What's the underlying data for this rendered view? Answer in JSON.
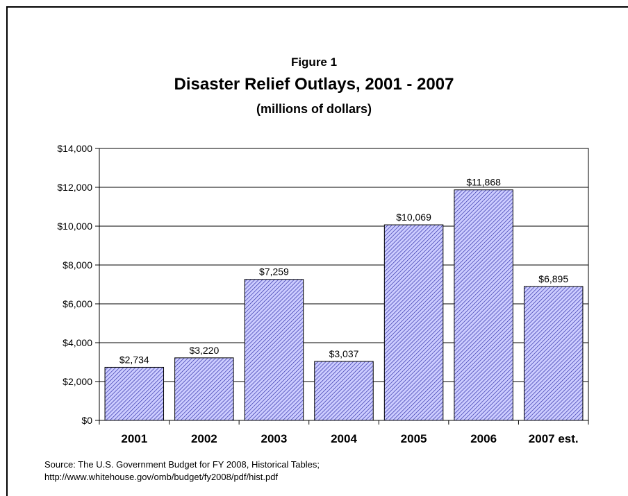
{
  "header": {
    "figure_label": "Figure 1",
    "title": "Disaster Relief Outlays, 2001 - 2007",
    "subtitle": "(millions of dollars)"
  },
  "source": {
    "line1": "Source: The U.S. Government Budget for FY 2008, Historical Tables;",
    "line2": "http://www.whitehouse.gov/omb/budget/fy2008/pdf/hist.pdf"
  },
  "colors": {
    "bar_fill": "#ccccff",
    "bar_hatch": "#3333aa",
    "axis": "#000000",
    "grid": "#000000"
  },
  "chart_data": {
    "type": "bar",
    "title": "Disaster Relief Outlays, 2001 - 2007",
    "subtitle": "(millions of dollars)",
    "categories": [
      "2001",
      "2002",
      "2003",
      "2004",
      "2005",
      "2006",
      "2007 est."
    ],
    "values": [
      2734,
      3220,
      7259,
      3037,
      10069,
      11868,
      6895
    ],
    "data_labels": [
      "$2,734",
      "$3,220",
      "$7,259",
      "$3,037",
      "$10,069",
      "$11,868",
      "$6,895"
    ],
    "ylim": [
      0,
      14000
    ],
    "yticks": [
      0,
      2000,
      4000,
      6000,
      8000,
      10000,
      12000,
      14000
    ],
    "ytick_labels": [
      "$0",
      "$2,000",
      "$4,000",
      "$6,000",
      "$8,000",
      "$10,000",
      "$12,000",
      "$14,000"
    ],
    "grid": true,
    "xlabel": "",
    "ylabel": ""
  }
}
